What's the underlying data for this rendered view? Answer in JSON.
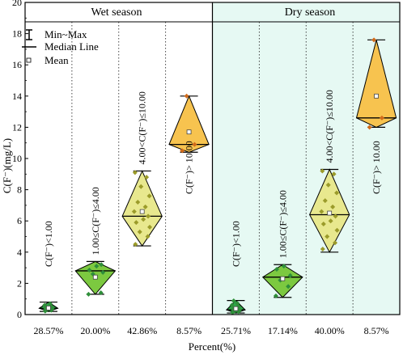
{
  "chart_data": {
    "type": "box",
    "ylabel": "C(F⁻)(mg/L)",
    "xlabel": "Percent(%)",
    "ylim": [
      0,
      20
    ],
    "yticks": [
      0,
      2,
      4,
      6,
      8,
      10,
      12,
      14,
      16,
      18,
      20
    ],
    "panels": [
      {
        "name": "Wet season",
        "background": "#ffffff"
      },
      {
        "name": "Dry season",
        "background": "#e6f9f3"
      }
    ],
    "legend": {
      "placement": "top-left",
      "items": [
        {
          "label": "Min~Max",
          "symbol": "whisker"
        },
        {
          "label": "Median Line",
          "symbol": "line"
        },
        {
          "label": "Mean",
          "symbol": "square"
        }
      ]
    },
    "groups": [
      {
        "season": "Wet season",
        "range": "C(F⁻)<1.00",
        "percent": "28.57%",
        "color": "#2ea84a",
        "min": 0.2,
        "max": 0.8,
        "median": 0.4,
        "mean": 0.42,
        "box_width": 0.4,
        "points": [
          0.22,
          0.28,
          0.33,
          0.38,
          0.42,
          0.45,
          0.52,
          0.6,
          0.7,
          0.5
        ]
      },
      {
        "season": "Wet season",
        "range": "1.00≤C(F⁻)≤4.00",
        "percent": "20.00%",
        "color": "#7cc940",
        "min": 1.3,
        "max": 3.4,
        "median": 2.8,
        "mean": 2.4,
        "box_width": 0.85,
        "points": [
          1.3,
          1.4,
          2.6,
          2.7,
          2.85,
          3.1,
          3.2
        ]
      },
      {
        "season": "Wet season",
        "range": "4.00<C(F⁻)≤10.00",
        "percent": "42.86%",
        "color": "#e8e88e",
        "min": 4.4,
        "max": 9.2,
        "median": 6.3,
        "mean": 6.6,
        "box_width": 0.85,
        "points": [
          4.5,
          5.0,
          5.3,
          5.6,
          5.9,
          6.1,
          6.3,
          6.6,
          6.9,
          7.2,
          7.6,
          8.2,
          8.8,
          9.1
        ]
      },
      {
        "season": "Wet season",
        "range": "C(F⁻)> 10.00",
        "percent": "8.57%",
        "color": "#f7c34f",
        "min": 10.4,
        "max": 14.0,
        "median": 10.9,
        "mean": 11.7,
        "box_width": 0.85,
        "points": [
          10.5,
          10.9,
          14.0
        ]
      },
      {
        "season": "Dry season",
        "range": "C(F⁻)<1.00",
        "percent": "25.71%",
        "color": "#2ea84a",
        "min": 0.1,
        "max": 0.9,
        "median": 0.3,
        "mean": 0.38,
        "box_width": 0.4,
        "points": [
          0.12,
          0.18,
          0.24,
          0.3,
          0.35,
          0.42,
          0.5,
          0.6,
          0.72,
          0.88
        ]
      },
      {
        "season": "Dry season",
        "range": "1.00≤C(F⁻)≤4.00",
        "percent": "17.14%",
        "color": "#7cc940",
        "min": 1.1,
        "max": 3.2,
        "median": 2.4,
        "mean": 2.3,
        "box_width": 0.85,
        "points": [
          1.2,
          1.8,
          2.2,
          2.5,
          2.9,
          3.1
        ]
      },
      {
        "season": "Dry season",
        "range": "4.00<C(F⁻)≤10.00",
        "percent": "40.00%",
        "color": "#e8e88e",
        "min": 4.0,
        "max": 9.3,
        "median": 6.4,
        "mean": 6.5,
        "box_width": 0.85,
        "points": [
          4.2,
          4.6,
          5.0,
          5.4,
          5.8,
          6.0,
          6.3,
          6.6,
          6.9,
          7.3,
          7.8,
          8.3,
          9.0,
          9.2
        ]
      },
      {
        "season": "Dry season",
        "range": "C(F⁻)> 10.00",
        "percent": "8.57%",
        "color": "#f7c34f",
        "min": 12.0,
        "max": 17.6,
        "median": 12.6,
        "mean": 14.0,
        "box_width": 0.85,
        "points": [
          12.0,
          12.6,
          17.6
        ]
      }
    ]
  }
}
